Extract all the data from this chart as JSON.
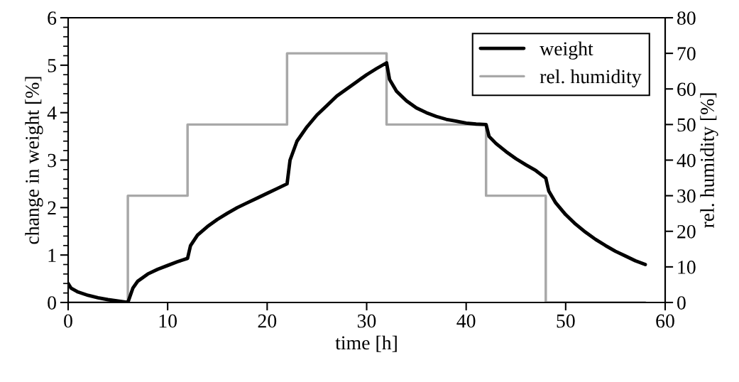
{
  "chart_data": {
    "type": "line",
    "xlabel": "time [h]",
    "ylabel": "change in weight [%]",
    "y2label": "rel. humidity [%]",
    "xlim": [
      0,
      60
    ],
    "xticks": [
      0,
      10,
      20,
      30,
      40,
      50,
      60
    ],
    "ylim": [
      0,
      6
    ],
    "yticks": [
      0,
      1,
      2,
      3,
      4,
      5,
      6
    ],
    "y2lim": [
      0,
      80
    ],
    "y2ticks": [
      0,
      10,
      20,
      30,
      40,
      50,
      60,
      70,
      80
    ],
    "legend": "top right",
    "grid": false,
    "series": [
      {
        "name": "weight",
        "color": "#000000",
        "x": [
          0,
          0.3,
          1,
          2,
          3,
          4,
          5,
          6,
          6.5,
          7,
          8,
          9,
          10,
          11,
          12,
          12.3,
          13,
          14,
          15,
          16,
          17,
          18,
          19,
          20,
          21,
          22,
          22.3,
          23,
          24,
          25,
          26,
          27,
          28,
          29,
          30,
          31,
          32,
          32.3,
          33,
          34,
          35,
          36,
          37,
          38,
          39,
          40,
          41,
          42,
          42.3,
          43,
          44,
          45,
          46,
          47,
          48,
          48.3,
          49,
          50,
          51,
          52,
          53,
          54,
          55,
          56,
          57,
          58
        ],
        "values": [
          0.4,
          0.3,
          0.22,
          0.15,
          0.1,
          0.06,
          0.03,
          0.0,
          0.3,
          0.45,
          0.6,
          0.7,
          0.78,
          0.86,
          0.93,
          1.2,
          1.42,
          1.6,
          1.75,
          1.88,
          2.0,
          2.1,
          2.2,
          2.3,
          2.4,
          2.5,
          3.0,
          3.4,
          3.7,
          3.95,
          4.15,
          4.35,
          4.5,
          4.65,
          4.8,
          4.93,
          5.05,
          4.7,
          4.45,
          4.25,
          4.1,
          4.0,
          3.92,
          3.86,
          3.82,
          3.78,
          3.76,
          3.75,
          3.5,
          3.35,
          3.18,
          3.03,
          2.9,
          2.78,
          2.62,
          2.35,
          2.1,
          1.85,
          1.65,
          1.48,
          1.33,
          1.2,
          1.08,
          0.98,
          0.88,
          0.8
        ]
      },
      {
        "name": "rel. humidity",
        "color": "#a8a8a8",
        "type": "step",
        "axis": "y2",
        "x": [
          0,
          6,
          12,
          22,
          32,
          42,
          48,
          58
        ],
        "values": [
          0,
          30,
          50,
          70,
          50,
          30,
          0,
          0
        ]
      }
    ]
  }
}
